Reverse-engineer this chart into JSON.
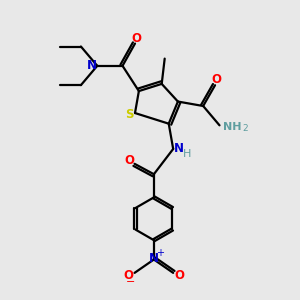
{
  "bg_color": "#e8e8e8",
  "bond_color": "#000000",
  "colors": {
    "O": "#ff0000",
    "N": "#0000cc",
    "S": "#cccc00",
    "C": "#000000",
    "H": "#5f9ea0",
    "NH2": "#5f9ea0"
  },
  "figsize": [
    3.0,
    3.0
  ],
  "dpi": 100
}
